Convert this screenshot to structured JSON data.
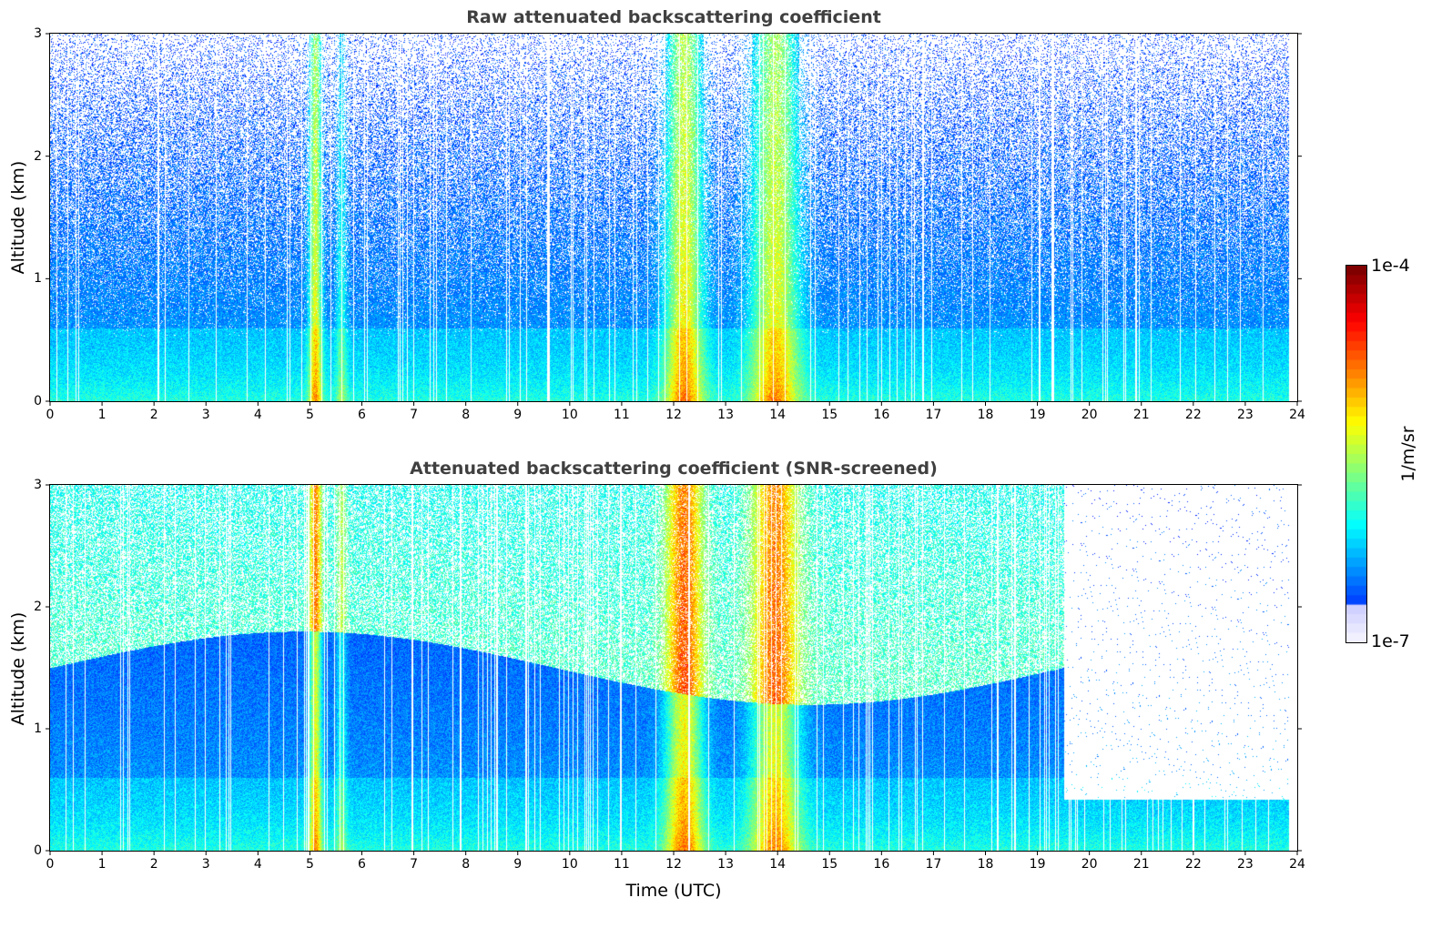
{
  "chart_data": [
    {
      "type": "heatmap",
      "title": "Raw attenuated backscattering coefficient",
      "ylabel": "Altitude (km)",
      "xlabel": "",
      "xlim": [
        0,
        24
      ],
      "ylim": [
        0,
        3
      ],
      "x_ticks": [
        "0",
        "1",
        "2",
        "3",
        "4",
        "5",
        "6",
        "7",
        "8",
        "9",
        "10",
        "11",
        "12",
        "13",
        "14",
        "15",
        "16",
        "17",
        "18",
        "19",
        "20",
        "21",
        "22",
        "23",
        "24"
      ],
      "y_ticks": [
        "0",
        "1",
        "2",
        "3"
      ],
      "features": [
        {
          "name": "aerosol layer (high backscatter)",
          "x_range": [
            0,
            24
          ],
          "y_range": [
            0,
            0.8
          ]
        },
        {
          "name": "precipitation/high backscatter",
          "x_range": [
            4.9,
            5.3
          ]
        },
        {
          "name": "precipitation/high backscatter",
          "x_range": [
            11.7,
            12.7
          ]
        },
        {
          "name": "precipitation/high backscatter",
          "x_range": [
            13.3,
            14.6
          ]
        }
      ]
    },
    {
      "type": "heatmap",
      "title": "Attenuated backscattering coefficient (SNR-screened)",
      "ylabel": "Altitude (km)",
      "xlabel": "Time (UTC)",
      "xlim": [
        0,
        24
      ],
      "ylim": [
        0,
        3
      ],
      "x_ticks": [
        "0",
        "1",
        "2",
        "3",
        "4",
        "5",
        "6",
        "7",
        "8",
        "9",
        "10",
        "11",
        "12",
        "13",
        "14",
        "15",
        "16",
        "17",
        "18",
        "19",
        "20",
        "21",
        "22",
        "23",
        "24"
      ],
      "y_ticks": [
        "0",
        "1",
        "2",
        "3"
      ],
      "features": [
        {
          "name": "boundary layer",
          "x_range": [
            0,
            19.5
          ],
          "y_range": [
            0,
            1.7
          ]
        },
        {
          "name": "screened region",
          "x_range": [
            19.5,
            24
          ],
          "y_range": [
            0.4,
            3
          ]
        }
      ]
    }
  ],
  "colorbar": {
    "label": "1/m/sr",
    "max_label": "1e-4",
    "min_label": "1e-7",
    "scale": "log",
    "range": [
      1e-07,
      0.0001
    ],
    "colormap": "jet"
  }
}
